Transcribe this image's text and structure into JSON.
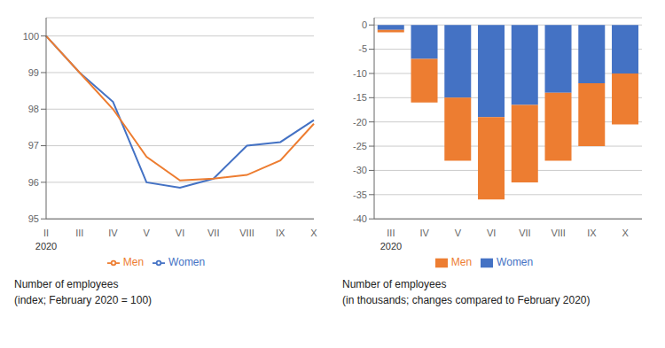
{
  "chart_data": [
    {
      "type": "line",
      "title": "Number of employees",
      "subtitle": "(index; February 2020 = 100)",
      "categories": [
        "II",
        "III",
        "IV",
        "V",
        "VI",
        "VII",
        "VIII",
        "IX",
        "X"
      ],
      "series": [
        {
          "name": "Women",
          "color": "#4472C4",
          "values": [
            100.0,
            99.0,
            98.2,
            96.0,
            95.85,
            96.1,
            97.0,
            97.1,
            97.7
          ]
        },
        {
          "name": "Men",
          "color": "#ED7D31",
          "values": [
            100.0,
            99.0,
            98.0,
            96.7,
            96.05,
            96.1,
            96.2,
            96.6,
            97.6
          ]
        }
      ],
      "ylim": [
        95,
        100.5
      ],
      "yticks": [
        95,
        96,
        97,
        98,
        99,
        100
      ],
      "grid": true,
      "legend": "bottom",
      "annotations": [
        {
          "text": "2020",
          "x": "II"
        }
      ]
    },
    {
      "type": "bar",
      "stacked": true,
      "title": "Number of employees",
      "subtitle": "(in thousands; changes compared to February 2020)",
      "categories": [
        "III",
        "IV",
        "V",
        "VI",
        "VII",
        "VIII",
        "IX",
        "X"
      ],
      "series": [
        {
          "name": "Women",
          "color": "#4472C4",
          "values": [
            -1.0,
            -7.0,
            -15.0,
            -19.0,
            -16.5,
            -14.0,
            -12.0,
            -10.0
          ]
        },
        {
          "name": "Men",
          "color": "#ED7D31",
          "values": [
            -0.5,
            -9.0,
            -13.0,
            -17.0,
            -16.0,
            -14.0,
            -13.0,
            -10.5
          ]
        }
      ],
      "ylim": [
        -40,
        1.5
      ],
      "yticks": [
        0,
        -5,
        -10,
        -15,
        -20,
        -25,
        -30,
        -35,
        -40
      ],
      "grid": true,
      "legend": "bottom",
      "annotations": [
        {
          "text": "2020",
          "x": "III"
        }
      ]
    }
  ]
}
